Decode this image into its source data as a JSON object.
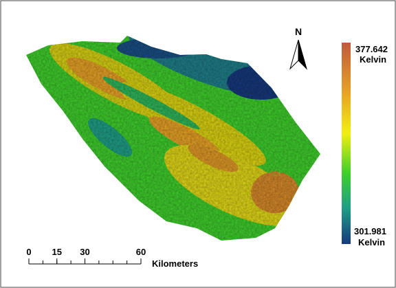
{
  "north": "N",
  "legend": {
    "max": {
      "value": 377.642,
      "unit": "Kelvin"
    },
    "min": {
      "value": 301.981,
      "unit": "Kelvin"
    }
  },
  "scale_bar": {
    "ticks": [
      0,
      15,
      30,
      60
    ],
    "unit": "Kilometers"
  }
}
